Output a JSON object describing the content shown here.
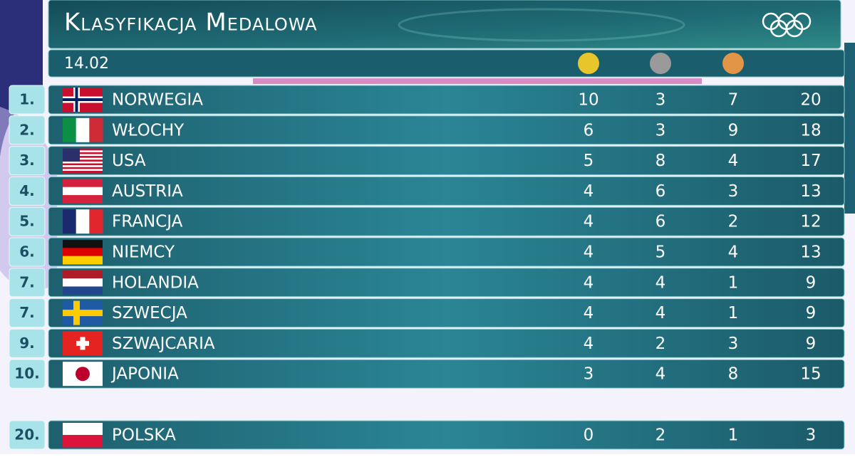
{
  "header": {
    "title": "Klasyfikacja Medalowa",
    "date": "14.02"
  },
  "table": {
    "rows": [
      {
        "rank": "1.",
        "country": "NORWEGIA",
        "gold": 10,
        "silver": 3,
        "bronze": 7,
        "total": 20
      },
      {
        "rank": "2.",
        "country": "WŁOCHY",
        "gold": 6,
        "silver": 3,
        "bronze": 9,
        "total": 18
      },
      {
        "rank": "3.",
        "country": "USA",
        "gold": 5,
        "silver": 8,
        "bronze": 4,
        "total": 17
      },
      {
        "rank": "4.",
        "country": "AUSTRIA",
        "gold": 4,
        "silver": 6,
        "bronze": 3,
        "total": 13
      },
      {
        "rank": "5.",
        "country": "FRANCJA",
        "gold": 4,
        "silver": 6,
        "bronze": 2,
        "total": 12
      },
      {
        "rank": "6.",
        "country": "NIEMCY",
        "gold": 4,
        "silver": 5,
        "bronze": 4,
        "total": 13
      },
      {
        "rank": "7.",
        "country": "HOLANDIA",
        "gold": 4,
        "silver": 4,
        "bronze": 1,
        "total": 9
      },
      {
        "rank": "7.",
        "country": "SZWECJA",
        "gold": 4,
        "silver": 4,
        "bronze": 1,
        "total": 9
      },
      {
        "rank": "9.",
        "country": "SZWAJCARIA",
        "gold": 4,
        "silver": 2,
        "bronze": 3,
        "total": 9
      },
      {
        "rank": "10.",
        "country": "JAPONIA",
        "gold": 3,
        "silver": 4,
        "bronze": 8,
        "total": 15
      },
      {
        "rank": "20.",
        "country": "POLSKA",
        "gold": 0,
        "silver": 2,
        "bronze": 1,
        "total": 3
      }
    ]
  }
}
